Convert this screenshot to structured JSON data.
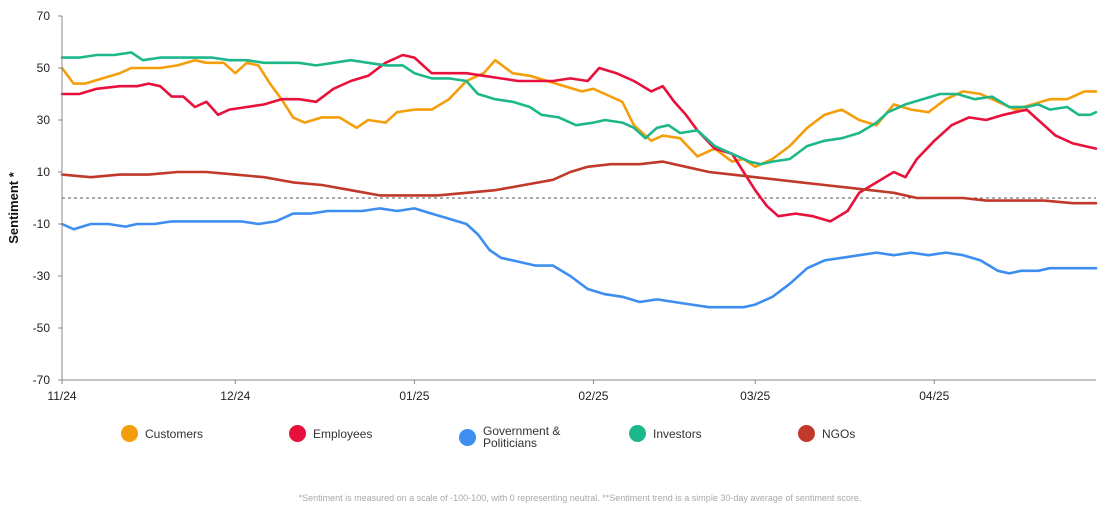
{
  "footnote": "*Sentiment is measured on a scale of -100-100, with 0 representing neutral. **Sentiment trend is a simple 30-day average of sentiment score.",
  "chart_data": {
    "type": "line",
    "ylabel": "Sentiment *",
    "xlabel": "",
    "title": "",
    "ylim": [
      -70,
      70
    ],
    "yticks": [
      "70",
      "50",
      "30",
      "10",
      "-10",
      "-30",
      "-50",
      "-70"
    ],
    "xticks": [
      {
        "label": "11/24",
        "day": 0
      },
      {
        "label": "12/24",
        "day": 30
      },
      {
        "label": "01/25",
        "day": 61
      },
      {
        "label": "02/25",
        "day": 92
      },
      {
        "label": "03/25",
        "day": 120
      },
      {
        "label": "04/25",
        "day": 151
      }
    ],
    "x_range_days": [
      0,
      179
    ],
    "reference_line": 0,
    "legend_position": "bottom",
    "series": [
      {
        "name": "Customers",
        "color": "#F59E0B",
        "points": [
          [
            0,
            50
          ],
          [
            2,
            44
          ],
          [
            4,
            44
          ],
          [
            7,
            46
          ],
          [
            10,
            48
          ],
          [
            12,
            50
          ],
          [
            15,
            50
          ],
          [
            17,
            50
          ],
          [
            20,
            51
          ],
          [
            23,
            53
          ],
          [
            25,
            52
          ],
          [
            28,
            52
          ],
          [
            30,
            48
          ],
          [
            32,
            52
          ],
          [
            34,
            51
          ],
          [
            36,
            44
          ],
          [
            38,
            38
          ],
          [
            40,
            31
          ],
          [
            42,
            29
          ],
          [
            45,
            31
          ],
          [
            48,
            31
          ],
          [
            51,
            27
          ],
          [
            53,
            30
          ],
          [
            56,
            29
          ],
          [
            58,
            33
          ],
          [
            61,
            34
          ],
          [
            64,
            34
          ],
          [
            67,
            38
          ],
          [
            70,
            45
          ],
          [
            73,
            48
          ],
          [
            75,
            53
          ],
          [
            78,
            48
          ],
          [
            81,
            47
          ],
          [
            84,
            45
          ],
          [
            87,
            43
          ],
          [
            90,
            41
          ],
          [
            92,
            42
          ],
          [
            94,
            40
          ],
          [
            97,
            37
          ],
          [
            99,
            28
          ],
          [
            102,
            22
          ],
          [
            104,
            24
          ],
          [
            107,
            23
          ],
          [
            110,
            16
          ],
          [
            113,
            19
          ],
          [
            116,
            14
          ],
          [
            118,
            15
          ],
          [
            120,
            12
          ],
          [
            123,
            15
          ],
          [
            126,
            20
          ],
          [
            129,
            27
          ],
          [
            132,
            32
          ],
          [
            135,
            34
          ],
          [
            138,
            30
          ],
          [
            141,
            28
          ],
          [
            144,
            36
          ],
          [
            147,
            34
          ],
          [
            150,
            33
          ],
          [
            153,
            38
          ],
          [
            156,
            41
          ],
          [
            159,
            40
          ],
          [
            162,
            37
          ],
          [
            165,
            34
          ],
          [
            168,
            36
          ],
          [
            171,
            38
          ],
          [
            174,
            38
          ],
          [
            177,
            41
          ],
          [
            179,
            41
          ]
        ]
      },
      {
        "name": "Employees",
        "color": "#E8113C",
        "points": [
          [
            0,
            40
          ],
          [
            3,
            40
          ],
          [
            6,
            42
          ],
          [
            10,
            43
          ],
          [
            13,
            43
          ],
          [
            15,
            44
          ],
          [
            17,
            43
          ],
          [
            19,
            39
          ],
          [
            21,
            39
          ],
          [
            23,
            35
          ],
          [
            25,
            37
          ],
          [
            27,
            32
          ],
          [
            29,
            34
          ],
          [
            32,
            35
          ],
          [
            35,
            36
          ],
          [
            38,
            38
          ],
          [
            41,
            38
          ],
          [
            44,
            37
          ],
          [
            47,
            42
          ],
          [
            50,
            45
          ],
          [
            53,
            47
          ],
          [
            56,
            52
          ],
          [
            59,
            55
          ],
          [
            61,
            54
          ],
          [
            64,
            48
          ],
          [
            67,
            48
          ],
          [
            70,
            48
          ],
          [
            73,
            47
          ],
          [
            76,
            46
          ],
          [
            79,
            45
          ],
          [
            82,
            45
          ],
          [
            85,
            45
          ],
          [
            88,
            46
          ],
          [
            91,
            45
          ],
          [
            93,
            50
          ],
          [
            96,
            48
          ],
          [
            99,
            45
          ],
          [
            102,
            41
          ],
          [
            104,
            43
          ],
          [
            106,
            37
          ],
          [
            108,
            32
          ],
          [
            110,
            26
          ],
          [
            113,
            19
          ],
          [
            116,
            17
          ],
          [
            118,
            10
          ],
          [
            120,
            3
          ],
          [
            122,
            -3
          ],
          [
            124,
            -7
          ],
          [
            127,
            -6
          ],
          [
            130,
            -7
          ],
          [
            133,
            -9
          ],
          [
            136,
            -5
          ],
          [
            138,
            2
          ],
          [
            141,
            6
          ],
          [
            144,
            10
          ],
          [
            146,
            8
          ],
          [
            148,
            15
          ],
          [
            151,
            22
          ],
          [
            154,
            28
          ],
          [
            157,
            31
          ],
          [
            160,
            30
          ],
          [
            163,
            32
          ],
          [
            165,
            33
          ],
          [
            167,
            34
          ],
          [
            169,
            30
          ],
          [
            172,
            24
          ],
          [
            175,
            21
          ],
          [
            177,
            20
          ],
          [
            179,
            19
          ]
        ]
      },
      {
        "name": "Government & Politicians",
        "color": "#3D8EF0",
        "points": [
          [
            0,
            -10
          ],
          [
            2,
            -12
          ],
          [
            5,
            -10
          ],
          [
            8,
            -10
          ],
          [
            11,
            -11
          ],
          [
            13,
            -10
          ],
          [
            16,
            -10
          ],
          [
            19,
            -9
          ],
          [
            22,
            -9
          ],
          [
            25,
            -9
          ],
          [
            28,
            -9
          ],
          [
            31,
            -9
          ],
          [
            34,
            -10
          ],
          [
            37,
            -9
          ],
          [
            40,
            -6
          ],
          [
            43,
            -6
          ],
          [
            46,
            -5
          ],
          [
            49,
            -5
          ],
          [
            52,
            -5
          ],
          [
            55,
            -4
          ],
          [
            58,
            -5
          ],
          [
            61,
            -4
          ],
          [
            64,
            -6
          ],
          [
            67,
            -8
          ],
          [
            70,
            -10
          ],
          [
            72,
            -14
          ],
          [
            74,
            -20
          ],
          [
            76,
            -23
          ],
          [
            78,
            -24
          ],
          [
            80,
            -25
          ],
          [
            82,
            -26
          ],
          [
            85,
            -26
          ],
          [
            88,
            -30
          ],
          [
            91,
            -35
          ],
          [
            94,
            -37
          ],
          [
            97,
            -38
          ],
          [
            100,
            -40
          ],
          [
            103,
            -39
          ],
          [
            106,
            -40
          ],
          [
            109,
            -41
          ],
          [
            112,
            -42
          ],
          [
            115,
            -42
          ],
          [
            118,
            -42
          ],
          [
            120,
            -41
          ],
          [
            123,
            -38
          ],
          [
            126,
            -33
          ],
          [
            129,
            -27
          ],
          [
            132,
            -24
          ],
          [
            135,
            -23
          ],
          [
            138,
            -22
          ],
          [
            141,
            -21
          ],
          [
            144,
            -22
          ],
          [
            147,
            -21
          ],
          [
            150,
            -22
          ],
          [
            153,
            -21
          ],
          [
            156,
            -22
          ],
          [
            159,
            -24
          ],
          [
            162,
            -28
          ],
          [
            164,
            -29
          ],
          [
            166,
            -28
          ],
          [
            169,
            -28
          ],
          [
            171,
            -27
          ],
          [
            174,
            -27
          ],
          [
            177,
            -27
          ],
          [
            179,
            -27
          ]
        ]
      },
      {
        "name": "Investors",
        "color": "#1DB88A",
        "points": [
          [
            0,
            54
          ],
          [
            3,
            54
          ],
          [
            6,
            55
          ],
          [
            9,
            55
          ],
          [
            12,
            56
          ],
          [
            14,
            53
          ],
          [
            17,
            54
          ],
          [
            20,
            54
          ],
          [
            23,
            54
          ],
          [
            26,
            54
          ],
          [
            29,
            53
          ],
          [
            32,
            53
          ],
          [
            35,
            52
          ],
          [
            38,
            52
          ],
          [
            41,
            52
          ],
          [
            44,
            51
          ],
          [
            47,
            52
          ],
          [
            50,
            53
          ],
          [
            53,
            52
          ],
          [
            56,
            51
          ],
          [
            59,
            51
          ],
          [
            61,
            48
          ],
          [
            64,
            46
          ],
          [
            67,
            46
          ],
          [
            70,
            45
          ],
          [
            72,
            40
          ],
          [
            75,
            38
          ],
          [
            78,
            37
          ],
          [
            81,
            35
          ],
          [
            83,
            32
          ],
          [
            86,
            31
          ],
          [
            89,
            28
          ],
          [
            92,
            29
          ],
          [
            94,
            30
          ],
          [
            97,
            29
          ],
          [
            99,
            27
          ],
          [
            101,
            23
          ],
          [
            103,
            27
          ],
          [
            105,
            28
          ],
          [
            107,
            25
          ],
          [
            110,
            26
          ],
          [
            113,
            20
          ],
          [
            116,
            17
          ],
          [
            119,
            14
          ],
          [
            121,
            13
          ],
          [
            123,
            14
          ],
          [
            126,
            15
          ],
          [
            129,
            20
          ],
          [
            132,
            22
          ],
          [
            135,
            23
          ],
          [
            138,
            25
          ],
          [
            141,
            29
          ],
          [
            143,
            33
          ],
          [
            146,
            36
          ],
          [
            149,
            38
          ],
          [
            152,
            40
          ],
          [
            155,
            40
          ],
          [
            158,
            38
          ],
          [
            161,
            39
          ],
          [
            164,
            35
          ],
          [
            167,
            35
          ],
          [
            169,
            36
          ],
          [
            171,
            34
          ],
          [
            174,
            35
          ],
          [
            176,
            32
          ],
          [
            178,
            32
          ],
          [
            179,
            33
          ]
        ]
      },
      {
        "name": "NGOs",
        "color": "#C0392B",
        "points": [
          [
            0,
            9
          ],
          [
            5,
            8
          ],
          [
            10,
            9
          ],
          [
            15,
            9
          ],
          [
            20,
            10
          ],
          [
            25,
            10
          ],
          [
            30,
            9
          ],
          [
            35,
            8
          ],
          [
            40,
            6
          ],
          [
            45,
            5
          ],
          [
            50,
            3
          ],
          [
            55,
            1
          ],
          [
            60,
            1
          ],
          [
            65,
            1
          ],
          [
            70,
            2
          ],
          [
            75,
            3
          ],
          [
            80,
            5
          ],
          [
            85,
            7
          ],
          [
            88,
            10
          ],
          [
            91,
            12
          ],
          [
            95,
            13
          ],
          [
            100,
            13
          ],
          [
            104,
            14
          ],
          [
            108,
            12
          ],
          [
            112,
            10
          ],
          [
            116,
            9
          ],
          [
            120,
            8
          ],
          [
            124,
            7
          ],
          [
            128,
            6
          ],
          [
            132,
            5
          ],
          [
            136,
            4
          ],
          [
            140,
            3
          ],
          [
            144,
            2
          ],
          [
            148,
            0
          ],
          [
            152,
            0
          ],
          [
            156,
            0
          ],
          [
            160,
            -1
          ],
          [
            165,
            -1
          ],
          [
            170,
            -1
          ],
          [
            175,
            -2
          ],
          [
            179,
            -2
          ]
        ]
      }
    ]
  }
}
